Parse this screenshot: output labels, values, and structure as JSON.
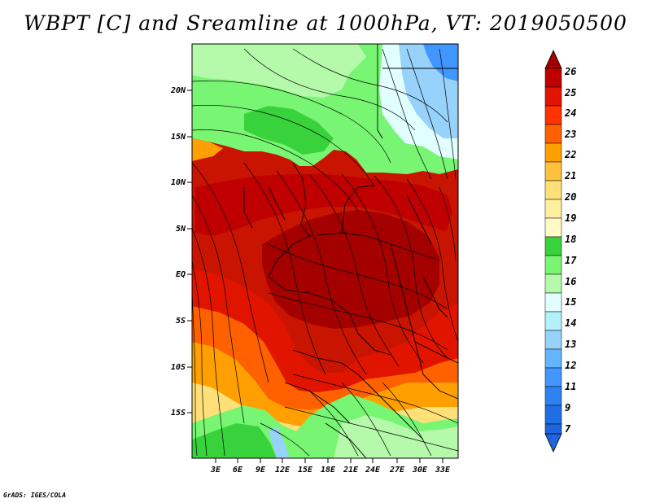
{
  "title": "WBPT [C] and Sreamline at 1000hPa, VT: 2019050500",
  "footer": "GrADS: IGES/COLA",
  "map": {
    "lat_labels": [
      "20N",
      "15N",
      "10N",
      "5N",
      "EQ",
      "5S",
      "10S",
      "15S"
    ],
    "lon_labels": [
      "3E",
      "6E",
      "9E",
      "12E",
      "15E",
      "18E",
      "21E",
      "24E",
      "27E",
      "30E",
      "33E"
    ],
    "field": "wet-bulb potential temperature with streamlines",
    "colors": {
      "c7": "#1e64dc",
      "c9": "#2d82f0",
      "c11": "#4196ff",
      "c12": "#64b4ff",
      "c13": "#96d2fa",
      "c14": "#b4f0fa",
      "c15": "#e1ffff",
      "c16": "#b4faaa",
      "c17": "#78f573",
      "c18": "#37d23c",
      "c19": "#fff0a0",
      "c20": "#ffe078",
      "c21": "#ffc03c",
      "c22": "#ffa000",
      "c23": "#ff6000",
      "c24": "#ff3200",
      "c25": "#e11400",
      "c26": "#c00000",
      "c27": "#a50000"
    }
  },
  "colorbar": {
    "labels": [
      "26",
      "25",
      "24",
      "23",
      "22",
      "21",
      "20",
      "19",
      "18",
      "17",
      "16",
      "15",
      "14",
      "13",
      "12",
      "11",
      "9",
      "7"
    ]
  }
}
